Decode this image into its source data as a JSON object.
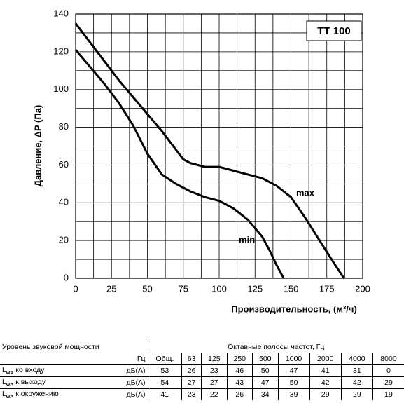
{
  "chart_data": {
    "type": "line",
    "title": "ТТ 100",
    "y_label": "Давление, ΔP (Па)",
    "x_label": "Производительность, (м³/ч)",
    "xlim": [
      0,
      200
    ],
    "ylim": [
      0,
      140
    ],
    "xticks": [
      0,
      25,
      50,
      75,
      100,
      125,
      150,
      175,
      200
    ],
    "yticks": [
      0,
      20,
      40,
      60,
      80,
      100,
      120,
      140
    ],
    "grid": true,
    "series": [
      {
        "name": "max",
        "color": "#000000",
        "x": [
          0,
          10,
          20,
          30,
          40,
          50,
          60,
          70,
          75,
          80,
          90,
          100,
          110,
          120,
          130,
          140,
          150,
          160,
          170,
          180,
          187
        ],
        "values": [
          135,
          125,
          115,
          105,
          96,
          87,
          78,
          68,
          63,
          61,
          59,
          59,
          57,
          55,
          53,
          49,
          43,
          32,
          20,
          8,
          0
        ]
      },
      {
        "name": "min",
        "color": "#000000",
        "x": [
          0,
          10,
          20,
          30,
          35,
          40,
          50,
          60,
          70,
          75,
          80,
          90,
          100,
          110,
          120,
          130,
          135,
          140,
          145
        ],
        "values": [
          121,
          112,
          103,
          93,
          87,
          81,
          66,
          55,
          50,
          48,
          46,
          43,
          41,
          37,
          31,
          22,
          15,
          7,
          0
        ]
      }
    ]
  },
  "table": {
    "header": {
      "left": "Уровень звуковой мощности",
      "right": "Октавные полосы частот, Гц"
    },
    "units_row": [
      "Гц",
      "Общ.",
      "63",
      "125",
      "250",
      "500",
      "1000",
      "2000",
      "4000",
      "8000"
    ],
    "rows": [
      {
        "symbol": "L",
        "sub": "wA",
        "text": "ко входу",
        "unit": "дБ(А)",
        "values": [
          53,
          26,
          23,
          46,
          50,
          47,
          41,
          31,
          0
        ]
      },
      {
        "symbol": "L",
        "sub": "wA",
        "text": "к выходу",
        "unit": "дБ(А)",
        "values": [
          54,
          27,
          27,
          43,
          47,
          50,
          42,
          42,
          29
        ]
      },
      {
        "symbol": "L",
        "sub": "wA",
        "text": "к окружению",
        "unit": "дБ(А)",
        "values": [
          41,
          23,
          22,
          26,
          34,
          39,
          29,
          29,
          19
        ]
      }
    ]
  }
}
